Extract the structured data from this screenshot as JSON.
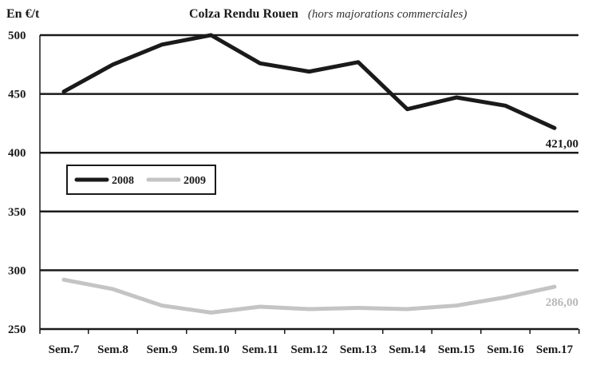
{
  "chart_data": {
    "type": "line",
    "title": "Colza Rendu Rouen",
    "subtitle": "(hors majorations commerciales)",
    "ylabel": "En €/t",
    "xlabel": "",
    "categories": [
      "Sem.7",
      "Sem.8",
      "Sem.9",
      "Sem.10",
      "Sem.11",
      "Sem.12",
      "Sem.13",
      "Sem.14",
      "Sem.15",
      "Sem.16",
      "Sem.17"
    ],
    "ylim": [
      250,
      500
    ],
    "yticks": [
      500,
      450,
      400,
      350,
      300,
      250
    ],
    "grid": true,
    "legend_placement": "left, inside plot",
    "series": [
      {
        "name": "2008",
        "color": "#1a1a1a",
        "values": [
          452,
          475,
          492,
          500,
          476,
          469,
          477,
          437,
          447,
          440,
          421
        ],
        "end_label": "421,00"
      },
      {
        "name": "2009",
        "color": "#c4c4c4",
        "values": [
          292,
          284,
          270,
          264,
          269,
          267,
          268,
          267,
          270,
          277,
          286
        ],
        "end_label": "286,00"
      }
    ]
  }
}
